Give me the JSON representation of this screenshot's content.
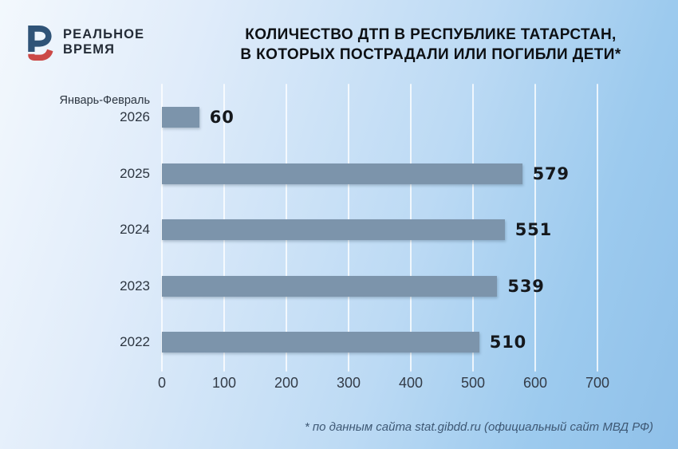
{
  "brand": {
    "name_line1": "РЕАЛЬНОЕ",
    "name_line2": "ВРЕМЯ",
    "mark_blue": "#2f5377",
    "mark_red": "#cb4947"
  },
  "title": {
    "line1": "КОЛИЧЕСТВО ДТП В РЕСПУБЛИКЕ ТАТАРСТАН,",
    "line2": "В КОТОРЫХ ПОСТРАДАЛИ ИЛИ ПОГИБЛИ ДЕТИ*"
  },
  "chart_data": {
    "type": "bar",
    "orientation": "horizontal",
    "title": "Количество ДТП в Республике Татарстан, в которых пострадали или погибли дети",
    "categories": [
      "2026",
      "2025",
      "2024",
      "2023",
      "2022"
    ],
    "category_notes": [
      "Январь-Февраль",
      "",
      "",
      "",
      ""
    ],
    "values": [
      60,
      579,
      551,
      539,
      510
    ],
    "xlim": [
      0,
      700
    ],
    "x_ticks": [
      0,
      100,
      200,
      300,
      400,
      500,
      600,
      700
    ],
    "grid": "vertical-white-lines",
    "legend_position": "none",
    "bar_color": "#7c94ab"
  },
  "footnote": "* по данным сайта stat.gibdd.ru (официальный сайт МВД РФ)"
}
